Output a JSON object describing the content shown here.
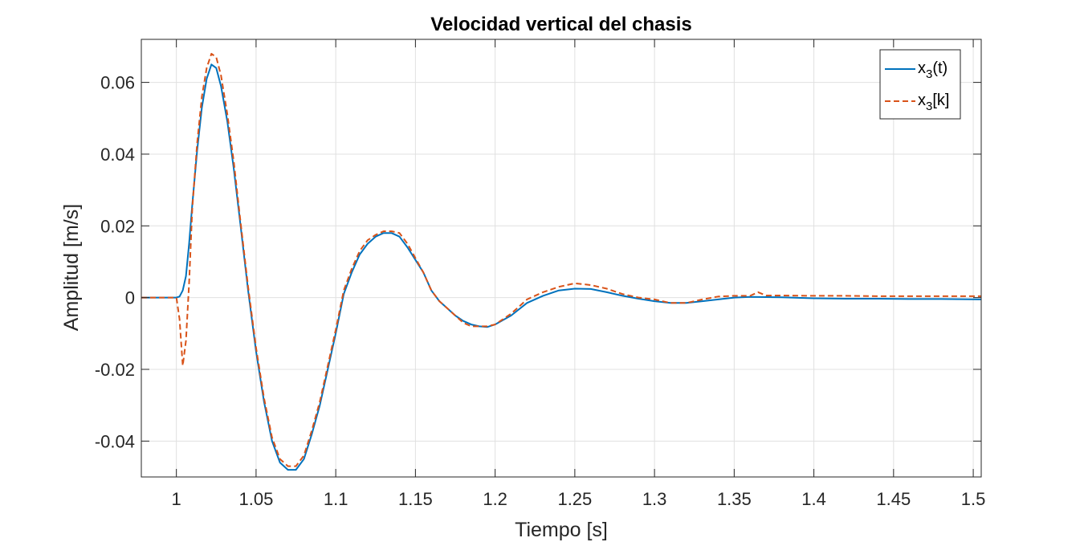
{
  "chart_data": {
    "type": "line",
    "title": "Velocidad vertical del chasis",
    "xlabel": "Tiempo [s]",
    "ylabel": "Amplitud [m/s]",
    "xlim": [
      0.978,
      1.505
    ],
    "ylim": [
      -0.05,
      0.072
    ],
    "grid": true,
    "legend_position": "top-right",
    "x_ticks": [
      1,
      1.05,
      1.1,
      1.15,
      1.2,
      1.25,
      1.3,
      1.35,
      1.4,
      1.45,
      1.5
    ],
    "x_tick_labels": [
      "1",
      "1.05",
      "1.1",
      "1.15",
      "1.2",
      "1.25",
      "1.3",
      "1.35",
      "1.4",
      "1.45",
      "1.5"
    ],
    "y_ticks": [
      -0.04,
      -0.02,
      0,
      0.02,
      0.04,
      0.06
    ],
    "y_tick_labels": [
      "-0.04",
      "-0.02",
      "0",
      "0.02",
      "0.04",
      "0.06"
    ],
    "series": [
      {
        "name": "x3(t)",
        "legend_base": "x",
        "legend_sub": "3",
        "legend_suffix": "(t)",
        "color": "#0072BD",
        "style": "solid",
        "x": [
          0.978,
          1.0,
          1.002,
          1.004,
          1.006,
          1.008,
          1.01,
          1.013,
          1.016,
          1.019,
          1.022,
          1.025,
          1.028,
          1.032,
          1.036,
          1.04,
          1.045,
          1.05,
          1.055,
          1.06,
          1.065,
          1.07,
          1.075,
          1.08,
          1.085,
          1.09,
          1.095,
          1.1,
          1.105,
          1.11,
          1.115,
          1.12,
          1.125,
          1.13,
          1.135,
          1.14,
          1.145,
          1.15,
          1.155,
          1.16,
          1.165,
          1.17,
          1.175,
          1.18,
          1.185,
          1.19,
          1.195,
          1.2,
          1.21,
          1.22,
          1.23,
          1.24,
          1.25,
          1.26,
          1.27,
          1.28,
          1.29,
          1.3,
          1.31,
          1.32,
          1.33,
          1.34,
          1.35,
          1.36,
          1.38,
          1.4,
          1.42,
          1.44,
          1.46,
          1.48,
          1.505
        ],
        "y": [
          0,
          0,
          0.0003,
          0.002,
          0.006,
          0.015,
          0.026,
          0.041,
          0.053,
          0.061,
          0.065,
          0.064,
          0.059,
          0.049,
          0.036,
          0.021,
          0.002,
          -0.015,
          -0.029,
          -0.04,
          -0.046,
          -0.048,
          -0.048,
          -0.045,
          -0.038,
          -0.03,
          -0.02,
          -0.01,
          0.001,
          0.007,
          0.012,
          0.015,
          0.017,
          0.018,
          0.018,
          0.017,
          0.014,
          0.0105,
          0.007,
          0.002,
          -0.001,
          -0.003,
          -0.005,
          -0.0065,
          -0.0075,
          -0.008,
          -0.0082,
          -0.0075,
          -0.005,
          -0.0015,
          0.0005,
          0.002,
          0.0025,
          0.0024,
          0.0015,
          0.0005,
          -0.0003,
          -0.001,
          -0.0015,
          -0.0015,
          -0.001,
          -0.0005,
          0,
          0.0002,
          0.0001,
          -0.0002,
          -0.0003,
          -0.0003,
          -0.0004,
          -0.0004,
          -0.0005
        ]
      },
      {
        "name": "x3[k]",
        "legend_base": "x",
        "legend_sub": "3",
        "legend_suffix": "[k]",
        "color": "#D95319",
        "style": "dashed",
        "x": [
          0.978,
          1.0,
          1.002,
          1.004,
          1.006,
          1.008,
          1.01,
          1.013,
          1.016,
          1.019,
          1.022,
          1.025,
          1.028,
          1.032,
          1.036,
          1.04,
          1.045,
          1.05,
          1.055,
          1.06,
          1.065,
          1.07,
          1.075,
          1.08,
          1.085,
          1.09,
          1.095,
          1.1,
          1.105,
          1.11,
          1.115,
          1.12,
          1.125,
          1.13,
          1.135,
          1.14,
          1.145,
          1.15,
          1.155,
          1.16,
          1.165,
          1.17,
          1.175,
          1.18,
          1.185,
          1.19,
          1.195,
          1.2,
          1.21,
          1.22,
          1.23,
          1.24,
          1.25,
          1.26,
          1.27,
          1.28,
          1.29,
          1.3,
          1.31,
          1.32,
          1.33,
          1.34,
          1.35,
          1.36,
          1.365,
          1.37,
          1.38,
          1.4,
          1.42,
          1.44,
          1.46,
          1.48,
          1.505
        ],
        "y": [
          0,
          0,
          -0.006,
          -0.019,
          -0.012,
          0.004,
          0.025,
          0.043,
          0.056,
          0.064,
          0.068,
          0.067,
          0.062,
          0.051,
          0.038,
          0.022,
          0.003,
          -0.014,
          -0.028,
          -0.039,
          -0.045,
          -0.047,
          -0.047,
          -0.044,
          -0.037,
          -0.029,
          -0.019,
          -0.009,
          0.002,
          0.008,
          0.013,
          0.016,
          0.0175,
          0.0185,
          0.0185,
          0.018,
          0.015,
          0.011,
          0.007,
          0.002,
          -0.001,
          -0.003,
          -0.005,
          -0.007,
          -0.008,
          -0.008,
          -0.008,
          -0.0075,
          -0.0045,
          -0.0005,
          0.0015,
          0.003,
          0.004,
          0.0035,
          0.0025,
          0.001,
          0,
          -0.0005,
          -0.0015,
          -0.0015,
          -0.0005,
          0.0003,
          0.0005,
          0.0005,
          0.0015,
          0.0006,
          0.0006,
          0.0005,
          0.0005,
          0.0004,
          0.0004,
          0.0004,
          0.0004
        ]
      }
    ]
  }
}
